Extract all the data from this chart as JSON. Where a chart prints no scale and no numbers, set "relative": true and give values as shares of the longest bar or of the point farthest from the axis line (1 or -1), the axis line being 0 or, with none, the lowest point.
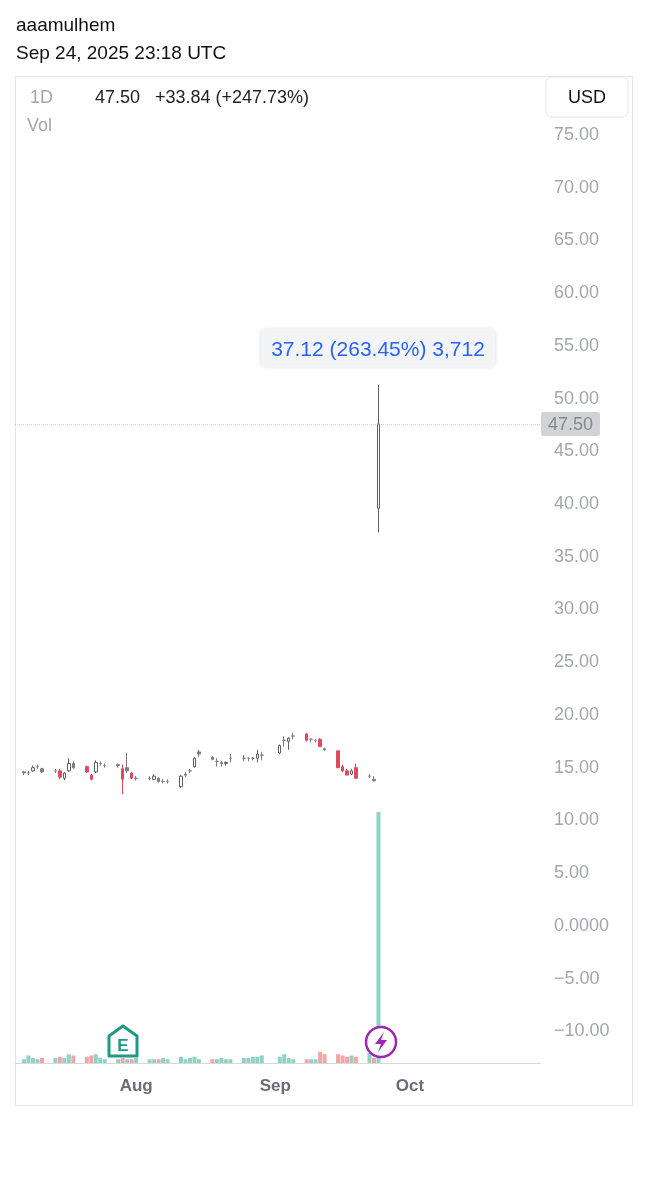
{
  "chart_data": [
    {
      "type": "candlestick",
      "title": "aaamulhem",
      "subtitle": "Sep 24, 2025 23:18 UTC",
      "x": [
        "2025-07-07",
        "2025-07-08",
        "2025-07-09",
        "2025-07-10",
        "2025-07-11",
        "2025-07-14",
        "2025-07-15",
        "2025-07-16",
        "2025-07-17",
        "2025-07-18",
        "2025-07-21",
        "2025-07-22",
        "2025-07-23",
        "2025-07-24",
        "2025-07-25",
        "2025-07-28",
        "2025-07-29",
        "2025-07-30",
        "2025-07-31",
        "2025-08-01",
        "2025-08-04",
        "2025-08-05",
        "2025-08-06",
        "2025-08-07",
        "2025-08-08",
        "2025-08-11",
        "2025-08-12",
        "2025-08-13",
        "2025-08-14",
        "2025-08-15",
        "2025-08-18",
        "2025-08-19",
        "2025-08-20",
        "2025-08-21",
        "2025-08-22",
        "2025-08-25",
        "2025-08-26",
        "2025-08-27",
        "2025-08-28",
        "2025-08-29",
        "2025-09-02",
        "2025-09-03",
        "2025-09-04",
        "2025-09-05",
        "2025-09-08",
        "2025-09-09",
        "2025-09-10",
        "2025-09-11",
        "2025-09-12",
        "2025-09-15",
        "2025-09-16",
        "2025-09-17",
        "2025-09-18",
        "2025-09-19",
        "2025-09-22",
        "2025-09-23",
        "2025-09-24"
      ],
      "ohlc": [
        [
          14.4,
          14.6,
          14.2,
          14.5
        ],
        [
          14.4,
          14.6,
          14.2,
          14.4
        ],
        [
          14.6,
          15.1,
          14.5,
          14.9
        ],
        [
          15.0,
          15.2,
          14.8,
          15.0
        ],
        [
          14.8,
          14.9,
          14.4,
          14.5
        ],
        [
          14.6,
          14.8,
          14.4,
          14.6
        ],
        [
          14.6,
          14.8,
          13.8,
          14.0
        ],
        [
          13.9,
          14.5,
          13.7,
          14.4
        ],
        [
          14.6,
          15.8,
          14.5,
          15.3
        ],
        [
          15.3,
          15.5,
          14.8,
          14.9
        ],
        [
          15.0,
          15.1,
          14.4,
          14.5
        ],
        [
          14.2,
          14.3,
          13.7,
          13.8
        ],
        [
          14.5,
          15.6,
          14.4,
          15.4
        ],
        [
          15.3,
          15.5,
          15.1,
          15.3
        ],
        [
          15.1,
          15.3,
          14.9,
          15.1
        ],
        [
          15.1,
          15.3,
          14.9,
          15.2
        ],
        [
          14.8,
          15.2,
          12.4,
          13.8
        ],
        [
          14.6,
          16.3,
          14.4,
          14.9
        ],
        [
          14.4,
          14.5,
          13.8,
          13.9
        ],
        [
          13.9,
          14.1,
          13.7,
          13.9
        ],
        [
          13.9,
          14.1,
          13.7,
          13.9
        ],
        [
          13.8,
          14.3,
          13.7,
          14.1
        ],
        [
          13.9,
          14.0,
          13.5,
          13.6
        ],
        [
          13.6,
          13.8,
          13.4,
          13.6
        ],
        [
          13.6,
          13.8,
          13.4,
          13.6
        ],
        [
          13.1,
          14.2,
          13.0,
          14.1
        ],
        [
          14.2,
          14.5,
          14.0,
          14.3
        ],
        [
          14.6,
          14.8,
          14.4,
          14.6
        ],
        [
          15.0,
          15.9,
          14.9,
          15.8
        ],
        [
          16.2,
          16.6,
          15.9,
          16.4
        ],
        [
          15.9,
          16.0,
          15.6,
          15.7
        ],
        [
          15.5,
          15.8,
          15.0,
          15.5
        ],
        [
          15.3,
          15.5,
          15.0,
          15.4
        ],
        [
          15.3,
          15.5,
          15.1,
          15.4
        ],
        [
          15.8,
          16.2,
          15.4,
          15.8
        ],
        [
          15.8,
          16.1,
          15.5,
          15.8
        ],
        [
          15.8,
          15.9,
          15.5,
          15.8
        ],
        [
          15.8,
          15.9,
          15.6,
          15.8
        ],
        [
          15.8,
          16.6,
          15.4,
          16.2
        ],
        [
          16.1,
          16.4,
          15.6,
          16.1
        ],
        [
          16.3,
          17.1,
          16.2,
          17.0
        ],
        [
          17.5,
          17.9,
          16.9,
          17.5
        ],
        [
          17.4,
          17.8,
          16.6,
          17.7
        ],
        [
          17.9,
          18.2,
          17.6,
          17.9
        ],
        [
          18.1,
          18.2,
          17.4,
          17.5
        ],
        [
          17.6,
          17.7,
          17.3,
          17.6
        ],
        [
          17.5,
          17.6,
          17.3,
          17.5
        ],
        [
          17.6,
          17.7,
          16.9,
          16.9
        ],
        [
          16.7,
          16.8,
          16.5,
          16.6
        ],
        [
          16.5,
          16.5,
          14.9,
          14.9
        ],
        [
          15.0,
          15.2,
          14.5,
          14.6
        ],
        [
          14.6,
          14.8,
          14.2,
          14.2
        ],
        [
          14.3,
          14.8,
          14.2,
          14.6
        ],
        [
          14.9,
          15.3,
          13.9,
          13.9
        ],
        [
          14.1,
          14.3,
          13.9,
          14.1
        ],
        [
          13.8,
          14.1,
          13.6,
          13.66
        ],
        [
          39.5,
          51.2,
          37.2,
          47.5
        ]
      ],
      "colors": [
        "#7b7e89",
        "#7b7e89",
        "#ffffff",
        "#7b7e89",
        "#7b7e89",
        "#7b7e89",
        "#e04a60",
        "#ffffff",
        "#ffffff",
        "#7b7e89",
        "#e04a60",
        "#e04a60",
        "#ffffff",
        "#7b7e89",
        "#7b7e89",
        "#7b7e89",
        "#e04a60",
        "#7b7e89",
        "#e04a60",
        "#7b7e89",
        "#7b7e89",
        "#ffffff",
        "#7b7e89",
        "#7b7e89",
        "#7b7e89",
        "#ffffff",
        "#7b7e89",
        "#7b7e89",
        "#ffffff",
        "#7b7e89",
        "#7b7e89",
        "#7b7e89",
        "#7b7e89",
        "#ffffff",
        "#7b7e89",
        "#7b7e89",
        "#7b7e89",
        "#7b7e89",
        "#ffffff",
        "#7b7e89",
        "#ffffff",
        "#7b7e89",
        "#ffffff",
        "#7b7e89",
        "#e04a60",
        "#7b7e89",
        "#7b7e89",
        "#e04a60",
        "#7b7e89",
        "#e04a60",
        "#e04a60",
        "#e04a60",
        "#ffffff",
        "#e04a60",
        "#7b7e89",
        "#7b7e89",
        "#ffffff"
      ],
      "xlim": [
        "2025-07-05",
        "2025-10-30"
      ],
      "xticks": [
        {
          "value": "2025-08-01",
          "label": "Aug"
        },
        {
          "value": "2025-09-01",
          "label": "Sep"
        },
        {
          "value": "2025-10-01",
          "label": "Oct"
        }
      ],
      "ylim": [
        -13.1,
        80.3
      ],
      "yticks": [
        {
          "value": 75,
          "label": "75.00"
        },
        {
          "value": 70,
          "label": "70.00"
        },
        {
          "value": 65,
          "label": "65.00"
        },
        {
          "value": 60,
          "label": "60.00"
        },
        {
          "value": 55,
          "label": "55.00"
        },
        {
          "value": 50,
          "label": "50.00"
        },
        {
          "value": 45,
          "label": "45.00"
        },
        {
          "value": 40,
          "label": "40.00"
        },
        {
          "value": 35,
          "label": "35.00"
        },
        {
          "value": 30,
          "label": "30.00"
        },
        {
          "value": 25,
          "label": "25.00"
        },
        {
          "value": 20,
          "label": "20.00"
        },
        {
          "value": 15,
          "label": "15.00"
        },
        {
          "value": 10,
          "label": "10.00"
        },
        {
          "value": 5,
          "label": "5.00"
        },
        {
          "value": 0,
          "label": "0.0000"
        },
        {
          "value": -5,
          "label": "−5.00"
        },
        {
          "value": -10,
          "label": "−10.00"
        }
      ],
      "ref_lines": [
        {
          "axis": "y",
          "value": 47.5,
          "label": "47.50",
          "color": "#8e9099"
        }
      ],
      "annotations": [
        "1D",
        "47.50",
        "+33.84 (+247.73%)",
        "Vol",
        "USD",
        "37.12 (263.45%) 3,712",
        "E"
      ],
      "grid": false
    },
    {
      "type": "bar",
      "relative": true,
      "x": [
        "2025-07-07",
        "2025-07-08",
        "2025-07-09",
        "2025-07-10",
        "2025-07-11",
        "2025-07-14",
        "2025-07-15",
        "2025-07-16",
        "2025-07-17",
        "2025-07-18",
        "2025-07-21",
        "2025-07-22",
        "2025-07-23",
        "2025-07-24",
        "2025-07-25",
        "2025-07-28",
        "2025-07-29",
        "2025-07-30",
        "2025-07-31",
        "2025-08-01",
        "2025-08-04",
        "2025-08-05",
        "2025-08-06",
        "2025-08-07",
        "2025-08-08",
        "2025-08-11",
        "2025-08-12",
        "2025-08-13",
        "2025-08-14",
        "2025-08-15",
        "2025-08-18",
        "2025-08-19",
        "2025-08-20",
        "2025-08-21",
        "2025-08-22",
        "2025-08-25",
        "2025-08-26",
        "2025-08-27",
        "2025-08-28",
        "2025-08-29",
        "2025-09-02",
        "2025-09-03",
        "2025-09-04",
        "2025-09-05",
        "2025-09-08",
        "2025-09-09",
        "2025-09-10",
        "2025-09-11",
        "2025-09-12",
        "2025-09-15",
        "2025-09-16",
        "2025-09-17",
        "2025-09-18",
        "2025-09-19",
        "2025-09-22",
        "2025-09-23",
        "2025-09-24"
      ],
      "values": [
        0.015,
        0.03,
        0.02,
        0.015,
        0.02,
        0.02,
        0.025,
        0.02,
        0.035,
        0.03,
        0.025,
        0.03,
        0.035,
        0.02,
        0.015,
        0.015,
        0.02,
        0.015,
        0.015,
        0.02,
        0.015,
        0.015,
        0.015,
        0.02,
        0.015,
        0.025,
        0.015,
        0.02,
        0.025,
        0.015,
        0.015,
        0.015,
        0.02,
        0.015,
        0.015,
        0.02,
        0.02,
        0.025,
        0.025,
        0.03,
        0.025,
        0.035,
        0.02,
        0.015,
        0.015,
        0.015,
        0.015,
        0.045,
        0.035,
        0.035,
        0.03,
        0.025,
        0.03,
        0.025,
        0.04,
        0.02,
        1
      ],
      "colors": [
        "#92d2c4",
        "#92d2c4",
        "#92d2c4",
        "#92d2c4",
        "#f4a6a6",
        "#92d2c4",
        "#f4a6a6",
        "#92d2c4",
        "#92d2c4",
        "#f4a6a6",
        "#f4a6a6",
        "#f4a6a6",
        "#92d2c4",
        "#92d2c4",
        "#92d2c4",
        "#92d2c4",
        "#f4a6a6",
        "#92d2c4",
        "#f4a6a6",
        "#92d2c4",
        "#92d2c4",
        "#92d2c4",
        "#f4a6a6",
        "#92d2c4",
        "#92d2c4",
        "#92d2c4",
        "#92d2c4",
        "#92d2c4",
        "#92d2c4",
        "#92d2c4",
        "#f4a6a6",
        "#92d2c4",
        "#92d2c4",
        "#92d2c4",
        "#92d2c4",
        "#92d2c4",
        "#92d2c4",
        "#92d2c4",
        "#92d2c4",
        "#92d2c4",
        "#92d2c4",
        "#92d2c4",
        "#92d2c4",
        "#92d2c4",
        "#f4a6a6",
        "#92d2c4",
        "#92d2c4",
        "#f4a6a6",
        "#f4a6a6",
        "#f4a6a6",
        "#f4a6a6",
        "#f4a6a6",
        "#92d2c4",
        "#f4a6a6",
        "#92d2c4",
        "#f4a6a6",
        "#92d2c4"
      ],
      "xlim": [
        "2025-07-05",
        "2025-10-30"
      ]
    }
  ]
}
